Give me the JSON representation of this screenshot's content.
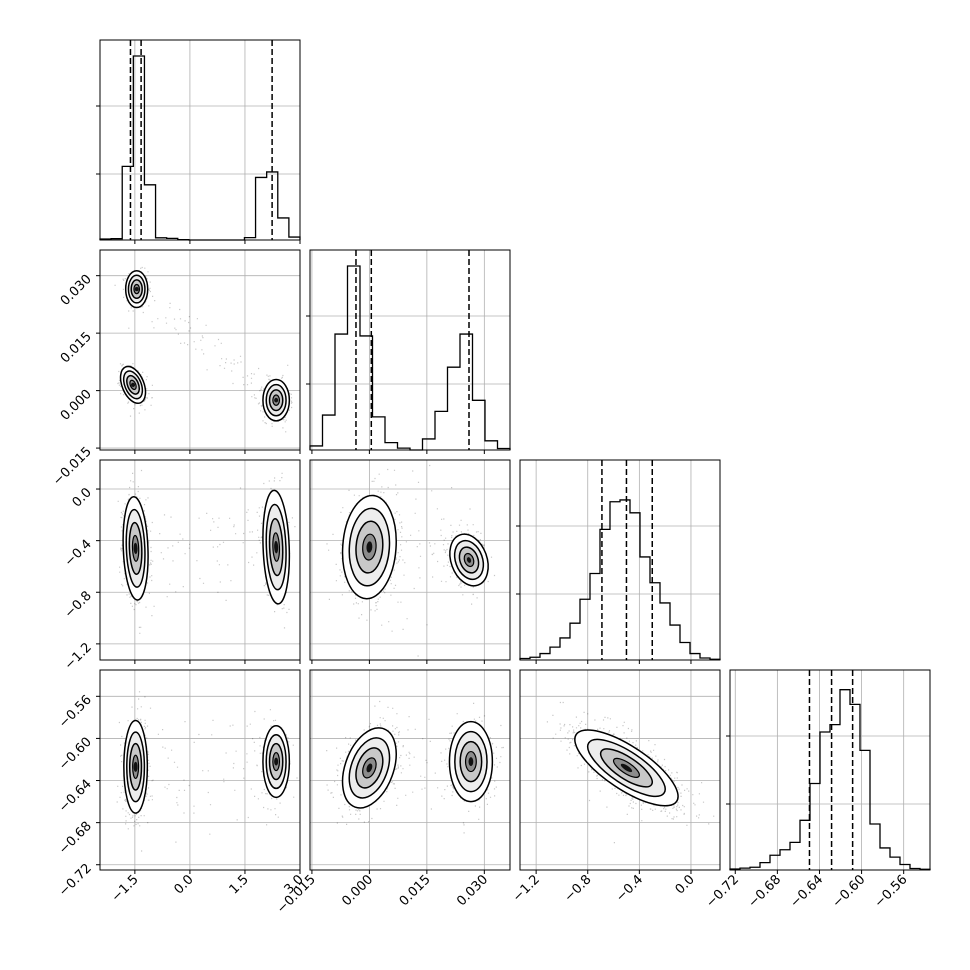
{
  "chart_data": {
    "type": "corner",
    "title": "",
    "parameters": [
      {
        "ticks": [
          -1.5,
          0.0,
          1.5,
          3.0
        ],
        "tick_labels": [
          "−1.5",
          "0.0",
          "1.5",
          "3.0"
        ],
        "range": [
          -2.45,
          3.0
        ],
        "modes": [
          {
            "center": -1.45,
            "sigma": 0.16,
            "weight": 0.48
          },
          {
            "center": 2.35,
            "sigma": 0.18,
            "weight": 0.25
          }
        ],
        "histogram": [
          0.005,
          0.007,
          0.4,
          1.0,
          0.3,
          0.012,
          0.009,
          0.002,
          0.0,
          0.0,
          0.0,
          0.0,
          0.0,
          0.013,
          0.34,
          0.37,
          0.12,
          0.016
        ],
        "quantiles": [
          -1.62,
          -1.33,
          2.24
        ]
      },
      {
        "ticks": [
          -0.015,
          0.0,
          0.015,
          0.03
        ],
        "tick_labels": [
          "−0.015",
          "0.000",
          "0.015",
          "0.030"
        ],
        "range": [
          -0.0155,
          0.0367
        ],
        "modes": [
          {
            "center": 0.0,
            "sigma": 0.0035,
            "weight": 0.48
          },
          {
            "center": 0.0265,
            "sigma": 0.0025,
            "weight": 0.25
          }
        ],
        "histogram": [
          0.022,
          0.19,
          0.63,
          1.0,
          0.62,
          0.18,
          0.04,
          0.01,
          0.0,
          0.06,
          0.21,
          0.45,
          0.63,
          0.27,
          0.05,
          0.008
        ],
        "quantiles": [
          -0.0035,
          0.0005,
          0.026
        ]
      },
      {
        "ticks": [
          -1.2,
          -0.8,
          -0.4,
          0.0
        ],
        "tick_labels": [
          "−1.2",
          "−0.8",
          "−0.4",
          "0.0"
        ],
        "range": [
          -1.325,
          0.225
        ],
        "modes": [
          {
            "center": -0.5,
            "sigma": 0.2,
            "weight": 1.0
          }
        ],
        "histogram": [
          0.008,
          0.015,
          0.035,
          0.07,
          0.12,
          0.2,
          0.33,
          0.47,
          0.71,
          0.86,
          0.87,
          0.8,
          0.56,
          0.42,
          0.31,
          0.19,
          0.095,
          0.035,
          0.011,
          0.004
        ],
        "quantiles": [
          -0.69,
          -0.5,
          -0.3
        ]
      },
      {
        "ticks": [
          -0.72,
          -0.68,
          -0.64,
          -0.6,
          -0.56
        ],
        "tick_labels": [
          "−0.72",
          "−0.68",
          "−0.64",
          "−0.60",
          "−0.56"
        ],
        "range": [
          -0.725,
          -0.535
        ],
        "modes": [
          {
            "center": -0.628,
            "sigma": 0.018,
            "weight": 1.0
          }
        ],
        "histogram": [
          0.005,
          0.01,
          0.015,
          0.04,
          0.08,
          0.11,
          0.15,
          0.27,
          0.47,
          0.75,
          0.79,
          0.98,
          0.9,
          0.65,
          0.25,
          0.12,
          0.07,
          0.03,
          0.008,
          0.004
        ],
        "quantiles": [
          -0.6495,
          -0.6285,
          -0.6085
        ]
      }
    ],
    "pairs": [
      {
        "row": 1,
        "col": 0,
        "clusters": [
          {
            "center": [
              -1.45,
              0.0265
            ],
            "sigma": [
              0.15,
              0.0024
            ],
            "rho": 0.0,
            "weight": 0.25
          },
          {
            "center": [
              -1.55,
              0.0015
            ],
            "sigma": [
              0.17,
              0.0024
            ],
            "rho": -0.4,
            "weight": 0.24
          },
          {
            "center": [
              2.35,
              -0.0025
            ],
            "sigma": [
              0.18,
              0.0027
            ],
            "rho": 0.0,
            "weight": 0.25
          }
        ]
      },
      {
        "row": 2,
        "col": 0,
        "clusters": [
          {
            "center": [
              -1.48,
              -0.46
            ],
            "sigma": [
              0.17,
              0.2
            ],
            "rho": -0.15,
            "weight": 0.48
          },
          {
            "center": [
              2.35,
              -0.45
            ],
            "sigma": [
              0.18,
              0.22
            ],
            "rho": -0.15,
            "weight": 0.25
          }
        ]
      },
      {
        "row": 2,
        "col": 1,
        "clusters": [
          {
            "center": [
              0.0,
              -0.45
            ],
            "sigma": [
              0.0035,
              0.2
            ],
            "rho": 0.1,
            "weight": 0.48
          },
          {
            "center": [
              0.026,
              -0.55
            ],
            "sigma": [
              0.0025,
              0.1
            ],
            "rho": -0.25,
            "weight": 0.25
          }
        ]
      },
      {
        "row": 3,
        "col": 0,
        "clusters": [
          {
            "center": [
              -1.48,
              -0.627
            ],
            "sigma": [
              0.16,
              0.022
            ],
            "rho": 0.0,
            "weight": 0.48
          },
          {
            "center": [
              2.35,
              -0.622
            ],
            "sigma": [
              0.18,
              0.017
            ],
            "rho": 0.0,
            "weight": 0.25
          }
        ]
      },
      {
        "row": 3,
        "col": 1,
        "clusters": [
          {
            "center": [
              0.0,
              -0.628
            ],
            "sigma": [
              0.0035,
              0.019
            ],
            "rho": 0.35,
            "weight": 0.48
          },
          {
            "center": [
              0.0265,
              -0.622
            ],
            "sigma": [
              0.0028,
              0.019
            ],
            "rho": 0.0,
            "weight": 0.25
          }
        ]
      },
      {
        "row": 3,
        "col": 2,
        "clusters": [
          {
            "center": [
              -0.5,
              -0.628
            ],
            "sigma": [
              0.2,
              0.018
            ],
            "rho": -0.75,
            "weight": 1.0
          }
        ]
      }
    ],
    "hist_y_ticks": [
      0.33,
      0.67
    ],
    "grid": true
  }
}
